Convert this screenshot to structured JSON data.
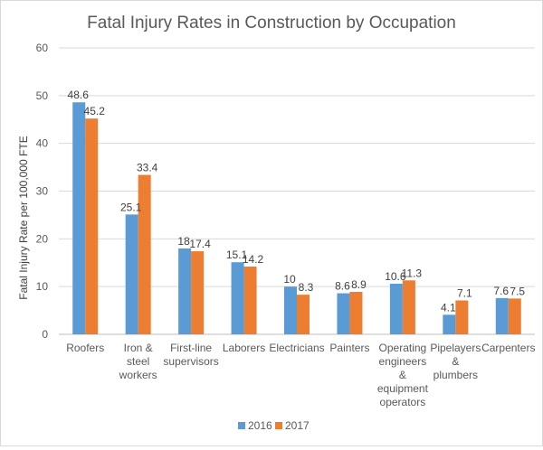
{
  "chart_data": {
    "type": "bar",
    "title": "Fatal Injury Rates in Construction by Occupation",
    "xlabel": "",
    "ylabel": "Fatal Injury Rate per 100,000 FTE",
    "ylim": [
      0,
      60
    ],
    "yticks": [
      0,
      10,
      20,
      30,
      40,
      50,
      60
    ],
    "grid": true,
    "legend_position": "bottom",
    "categories": [
      [
        "Roofers"
      ],
      [
        "Iron &",
        "steel",
        "workers"
      ],
      [
        "First-line",
        "supervisors"
      ],
      [
        "Laborers"
      ],
      [
        "Electricians"
      ],
      [
        "Painters"
      ],
      [
        "Operating",
        "engineers",
        "&",
        "equipment",
        "operators"
      ],
      [
        "Pipelayers",
        "&",
        "plumbers"
      ],
      [
        "Carpenters"
      ]
    ],
    "series": [
      {
        "name": "2016",
        "color": "#5b9bd5",
        "values": [
          48.6,
          25.1,
          18,
          15.1,
          10,
          8.6,
          10.6,
          4.1,
          7.6
        ],
        "labels": [
          "48.6",
          "25.1",
          "18",
          "15.1",
          "10",
          "8.6",
          "10.6",
          "4.1",
          "7.6"
        ]
      },
      {
        "name": "2017",
        "color": "#ed7d31",
        "values": [
          45.2,
          33.4,
          17.4,
          14.2,
          8.3,
          8.9,
          11.3,
          7.1,
          7.5
        ],
        "labels": [
          "45.2",
          "33.4",
          "17.4",
          "14.2",
          "8.3",
          "8.9",
          "11.3",
          "7.1",
          "7.5"
        ]
      }
    ]
  }
}
